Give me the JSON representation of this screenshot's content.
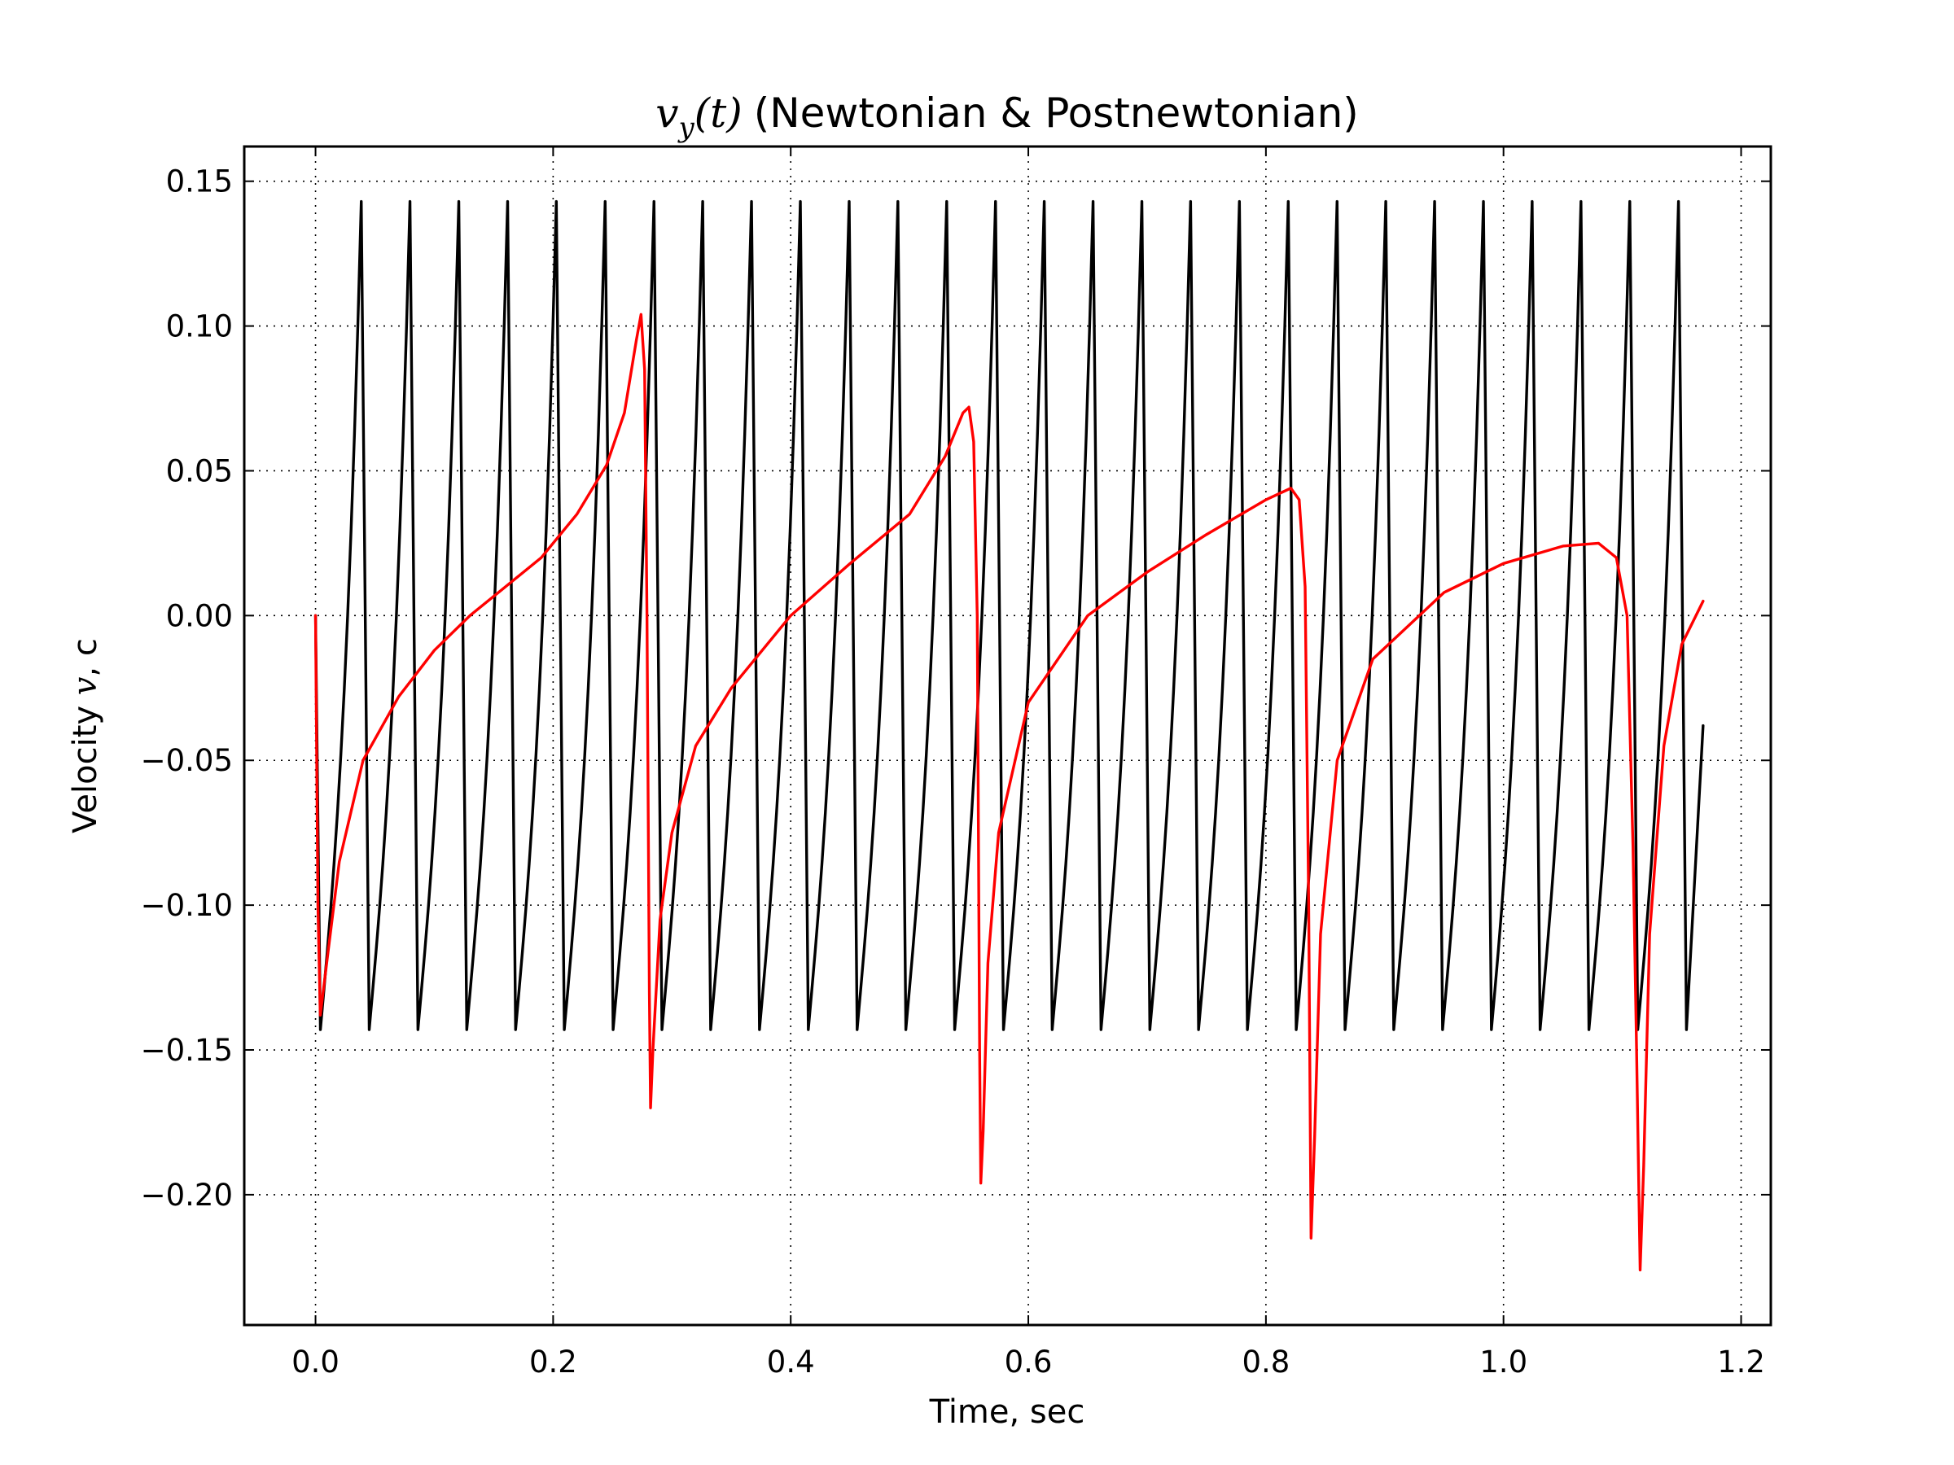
{
  "chart_data": {
    "type": "line",
    "title": "(Newtonian & Postnewtonian)",
    "title_math": "v_y(t)",
    "xlabel": "Time, sec",
    "ylabel_prefix": "Velocity ",
    "ylabel_math": "v",
    "ylabel_suffix": ", c",
    "xlim": [
      -0.06,
      1.225
    ],
    "ylim": [
      -0.245,
      0.162
    ],
    "xticks": [
      0.0,
      0.2,
      0.4,
      0.6,
      0.8,
      1.0,
      1.2
    ],
    "xtick_labels": [
      "0.0",
      "0.2",
      "0.4",
      "0.6",
      "0.8",
      "1.0",
      "1.2"
    ],
    "yticks": [
      0.15,
      0.1,
      0.05,
      0.0,
      -0.05,
      -0.1,
      -0.15,
      -0.2
    ],
    "ytick_labels": [
      "0.15",
      "0.10",
      "0.05",
      "0.00",
      "−0.05",
      "−0.10",
      "−0.15",
      "−0.20"
    ],
    "grid": true,
    "series": [
      {
        "color": "#000000",
        "curve": "periodic",
        "t_start": 0.0,
        "t_end": 1.168,
        "period": 0.04107,
        "amplitude": 0.143,
        "end_value": -0.038,
        "peak_times": [
          0.0385,
          0.0795,
          0.1206,
          0.1617,
          0.2027,
          0.2438,
          0.2849,
          0.3259,
          0.367,
          0.4081,
          0.4492,
          0.4902,
          0.5313,
          0.5724,
          0.6134,
          0.6545,
          0.6956,
          0.7366,
          0.7777,
          0.8188,
          0.8599,
          0.9009,
          0.942,
          0.9831,
          1.0241,
          1.0652,
          1.1063,
          1.1473
        ],
        "trough_times": [
          0.0041,
          0.0452,
          0.0862,
          0.1273,
          0.1684,
          0.2094,
          0.2505,
          0.2916,
          0.3326,
          0.3737,
          0.4148,
          0.4559,
          0.4969,
          0.538,
          0.5791,
          0.6201,
          0.6612,
          0.7023,
          0.7433,
          0.7844,
          0.8255,
          0.8666,
          0.9076,
          0.9487,
          0.9898,
          1.0308,
          1.0719,
          1.113,
          1.154
        ]
      },
      {
        "color": "#ff0000",
        "curve": "keypoints",
        "points": [
          [
            0.0,
            0.0
          ],
          [
            0.002,
            -0.1
          ],
          [
            0.004,
            -0.138
          ],
          [
            0.01,
            -0.118
          ],
          [
            0.02,
            -0.085
          ],
          [
            0.04,
            -0.05
          ],
          [
            0.07,
            -0.028
          ],
          [
            0.1,
            -0.012
          ],
          [
            0.13,
            0.0
          ],
          [
            0.16,
            0.01
          ],
          [
            0.19,
            0.02
          ],
          [
            0.22,
            0.035
          ],
          [
            0.245,
            0.052
          ],
          [
            0.26,
            0.07
          ],
          [
            0.27,
            0.095
          ],
          [
            0.274,
            0.104
          ],
          [
            0.277,
            0.085
          ],
          [
            0.279,
            0.0
          ],
          [
            0.281,
            -0.13
          ],
          [
            0.282,
            -0.17
          ],
          [
            0.284,
            -0.15
          ],
          [
            0.29,
            -0.105
          ],
          [
            0.3,
            -0.075
          ],
          [
            0.32,
            -0.045
          ],
          [
            0.35,
            -0.025
          ],
          [
            0.4,
            0.0
          ],
          [
            0.45,
            0.018
          ],
          [
            0.5,
            0.035
          ],
          [
            0.53,
            0.055
          ],
          [
            0.545,
            0.07
          ],
          [
            0.55,
            0.072
          ],
          [
            0.554,
            0.06
          ],
          [
            0.557,
            0.0
          ],
          [
            0.559,
            -0.15
          ],
          [
            0.56,
            -0.196
          ],
          [
            0.562,
            -0.178
          ],
          [
            0.566,
            -0.12
          ],
          [
            0.575,
            -0.075
          ],
          [
            0.6,
            -0.03
          ],
          [
            0.65,
            0.0
          ],
          [
            0.7,
            0.015
          ],
          [
            0.75,
            0.028
          ],
          [
            0.8,
            0.04
          ],
          [
            0.821,
            0.044
          ],
          [
            0.828,
            0.04
          ],
          [
            0.833,
            0.01
          ],
          [
            0.836,
            -0.1
          ],
          [
            0.838,
            -0.215
          ],
          [
            0.841,
            -0.18
          ],
          [
            0.846,
            -0.11
          ],
          [
            0.86,
            -0.05
          ],
          [
            0.89,
            -0.015
          ],
          [
            0.95,
            0.008
          ],
          [
            1.0,
            0.018
          ],
          [
            1.05,
            0.024
          ],
          [
            1.08,
            0.025
          ],
          [
            1.095,
            0.02
          ],
          [
            1.104,
            0.0
          ],
          [
            1.109,
            -0.08
          ],
          [
            1.112,
            -0.15
          ],
          [
            1.115,
            -0.226
          ],
          [
            1.118,
            -0.19
          ],
          [
            1.123,
            -0.11
          ],
          [
            1.135,
            -0.045
          ],
          [
            1.15,
            -0.01
          ],
          [
            1.168,
            0.005
          ]
        ]
      }
    ]
  }
}
